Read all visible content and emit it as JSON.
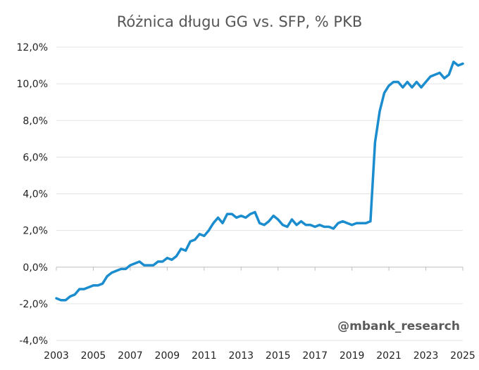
{
  "chart_data": {
    "type": "line",
    "title": "Różnica długu GG vs. SFP, % PKB",
    "xlabel": "",
    "ylabel": "",
    "xlim": [
      2003,
      2025
    ],
    "ylim": [
      -4,
      12
    ],
    "x_ticks": [
      2003,
      2005,
      2007,
      2009,
      2011,
      2013,
      2015,
      2017,
      2019,
      2021,
      2023,
      2025
    ],
    "x_tick_labels": [
      "2003",
      "2005",
      "2007",
      "2009",
      "2011",
      "2013",
      "2015",
      "2017",
      "2019",
      "2021",
      "2023",
      "2025"
    ],
    "y_ticks": [
      -4,
      -2,
      0,
      2,
      4,
      6,
      8,
      10,
      12
    ],
    "y_tick_labels": [
      "-4,0%",
      "-2,0%",
      "0,0%",
      "2,0%",
      "4,0%",
      "6,0%",
      "8,0%",
      "10,0%",
      "12,0%"
    ],
    "grid": "horizontal",
    "color": "#1b8ccd",
    "series": [
      {
        "x": [
          2003.0,
          2003.25,
          2003.5,
          2003.75,
          2004.0,
          2004.25,
          2004.5,
          2004.75,
          2005.0,
          2005.25,
          2005.5,
          2005.75,
          2006.0,
          2006.25,
          2006.5,
          2006.75,
          2007.0,
          2007.25,
          2007.5,
          2007.75,
          2008.0,
          2008.25,
          2008.5,
          2008.75,
          2009.0,
          2009.25,
          2009.5,
          2009.75,
          2010.0,
          2010.25,
          2010.5,
          2010.75,
          2011.0,
          2011.25,
          2011.5,
          2011.75,
          2012.0,
          2012.25,
          2012.5,
          2012.75,
          2013.0,
          2013.25,
          2013.5,
          2013.75,
          2014.0,
          2014.25,
          2014.5,
          2014.75,
          2015.0,
          2015.25,
          2015.5,
          2015.75,
          2016.0,
          2016.25,
          2016.5,
          2016.75,
          2017.0,
          2017.25,
          2017.5,
          2017.75,
          2018.0,
          2018.25,
          2018.5,
          2018.75,
          2019.0,
          2019.25,
          2019.5,
          2019.75,
          2020.0,
          2020.25,
          2020.5,
          2020.75,
          2021.0,
          2021.25,
          2021.5,
          2021.75,
          2022.0,
          2022.25,
          2022.5,
          2022.75,
          2023.0,
          2023.25,
          2023.5,
          2023.75,
          2024.0,
          2024.25,
          2024.5,
          2024.75,
          2025.0
        ],
        "y": [
          -1.7,
          -1.8,
          -1.8,
          -1.6,
          -1.5,
          -1.2,
          -1.2,
          -1.1,
          -1.0,
          -1.0,
          -0.9,
          -0.5,
          -0.3,
          -0.2,
          -0.1,
          -0.1,
          0.1,
          0.2,
          0.3,
          0.1,
          0.1,
          0.1,
          0.3,
          0.3,
          0.5,
          0.4,
          0.6,
          1.0,
          0.9,
          1.4,
          1.5,
          1.8,
          1.7,
          2.0,
          2.4,
          2.7,
          2.4,
          2.9,
          2.9,
          2.7,
          2.8,
          2.7,
          2.9,
          3.0,
          2.4,
          2.3,
          2.5,
          2.8,
          2.6,
          2.3,
          2.2,
          2.6,
          2.3,
          2.5,
          2.3,
          2.3,
          2.2,
          2.3,
          2.2,
          2.2,
          2.1,
          2.4,
          2.5,
          2.4,
          2.3,
          2.4,
          2.4,
          2.4,
          2.5,
          6.8,
          8.5,
          9.5,
          9.9,
          10.1,
          10.1,
          9.8,
          10.1,
          9.8,
          10.1,
          9.8,
          10.1,
          10.4,
          10.5,
          10.6,
          10.3,
          10.5,
          11.2,
          11.0,
          11.1
        ]
      }
    ],
    "watermark": "@mbank_research"
  }
}
